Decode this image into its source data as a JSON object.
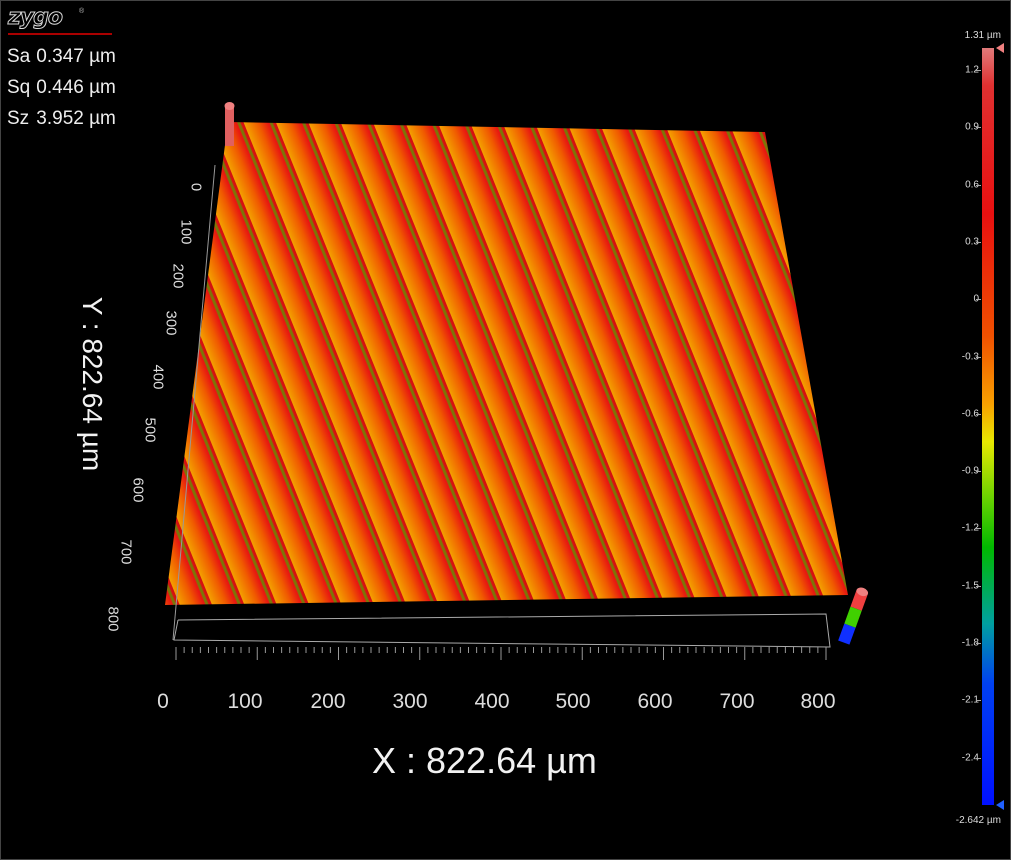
{
  "logo": {
    "text": "zygo",
    "mark": "®"
  },
  "stats": [
    {
      "key": "Sa",
      "value": "0.347 µm"
    },
    {
      "key": "Sq",
      "value": "0.446 µm"
    },
    {
      "key": "Sz",
      "value": "3.952 µm"
    }
  ],
  "x_axis": {
    "title": "X : 822.64 µm",
    "ticks": [
      "0",
      "100",
      "200",
      "300",
      "400",
      "500",
      "600",
      "700",
      "800"
    ]
  },
  "y_axis": {
    "title": "Y : 822.64 µm",
    "ticks": [
      "0",
      "100",
      "200",
      "300",
      "400",
      "500",
      "600",
      "700",
      "800"
    ]
  },
  "colorbar": {
    "max_label": "1.31 µm",
    "min_label": "-2.642 µm",
    "ticks": [
      "1.2",
      "0.9",
      "0.6",
      "0.3",
      "0",
      "-0.3",
      "-0.6",
      "-0.9",
      "-1.2",
      "-1.5",
      "-1.8",
      "-2.1",
      "-2.4"
    ],
    "colors": [
      "#e07a7a",
      "#e81010",
      "#f05000",
      "#f8a000",
      "#e8e800",
      "#00b800",
      "#0040f0",
      "#0010ff"
    ]
  },
  "surface": {
    "peak_color": "#e81a10",
    "mid_color": "#f07000",
    "valley_color": "#10c000"
  }
}
